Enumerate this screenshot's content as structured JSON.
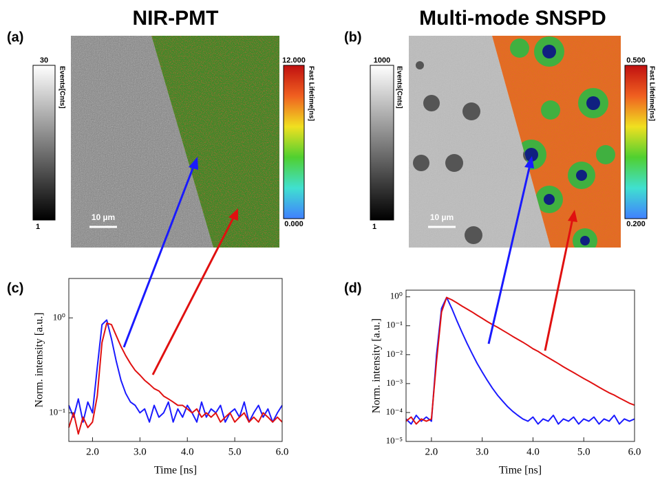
{
  "figure": {
    "panels": [
      {
        "label": "(a)",
        "title": "NIR-PMT",
        "gray_bar": {
          "top": "30",
          "bottom": "1",
          "label": "Events[Cnts]"
        },
        "color_bar": {
          "top": "12.000",
          "bottom": "0.000",
          "label": "Fast Lifetime[ns]"
        },
        "scale_bar": "10 µm"
      },
      {
        "label": "(b)",
        "title": "Multi-mode SNSPD",
        "gray_bar": {
          "top": "1000",
          "bottom": "1",
          "label": "Events[Cnts]"
        },
        "color_bar": {
          "top": "0.500",
          "bottom": "0.200",
          "label": "Fast Lifetime[ns]"
        },
        "scale_bar": "10 µm"
      }
    ]
  },
  "chart_data": [
    {
      "type": "line",
      "panel_label": "(c)",
      "x_label": "Time [ns]",
      "y_label": "Norm. intensity [a.u.]",
      "log_y": true,
      "xlim": [
        1.5,
        6.0
      ],
      "xticks": [
        {
          "value": 2,
          "label": "2.0"
        },
        {
          "value": 3,
          "label": "3.0"
        },
        {
          "value": 4,
          "label": "4.0"
        },
        {
          "value": 5,
          "label": "5.0"
        },
        {
          "value": 6,
          "label": "6.0"
        }
      ],
      "ylim": [
        0.05,
        2.6
      ],
      "yticks": [
        {
          "value": 0.1,
          "label": "10⁻¹"
        },
        {
          "value": 1,
          "label": "10⁰"
        }
      ],
      "x": [
        1.5,
        1.6,
        1.7,
        1.8,
        1.9,
        2.0,
        2.1,
        2.2,
        2.3,
        2.4,
        2.5,
        2.6,
        2.7,
        2.8,
        2.9,
        3.0,
        3.1,
        3.2,
        3.3,
        3.4,
        3.5,
        3.6,
        3.7,
        3.8,
        3.9,
        4.0,
        4.1,
        4.2,
        4.3,
        4.4,
        4.5,
        4.6,
        4.7,
        4.8,
        4.9,
        5.0,
        5.1,
        5.2,
        5.3,
        5.4,
        5.5,
        5.6,
        5.7,
        5.8,
        5.9,
        6.0
      ],
      "series": [
        {
          "color": "#1a1aff",
          "values": [
            0.12,
            0.09,
            0.14,
            0.08,
            0.13,
            0.1,
            0.3,
            0.85,
            0.95,
            0.6,
            0.35,
            0.22,
            0.16,
            0.13,
            0.12,
            0.1,
            0.11,
            0.08,
            0.12,
            0.09,
            0.1,
            0.13,
            0.08,
            0.11,
            0.09,
            0.12,
            0.1,
            0.08,
            0.13,
            0.09,
            0.11,
            0.1,
            0.12,
            0.08,
            0.1,
            0.11,
            0.09,
            0.13,
            0.08,
            0.1,
            0.12,
            0.09,
            0.11,
            0.08,
            0.1,
            0.12
          ]
        },
        {
          "color": "#e01010",
          "values": [
            0.07,
            0.1,
            0.06,
            0.09,
            0.07,
            0.08,
            0.15,
            0.55,
            0.88,
            0.85,
            0.65,
            0.5,
            0.4,
            0.33,
            0.28,
            0.25,
            0.22,
            0.2,
            0.18,
            0.17,
            0.15,
            0.14,
            0.13,
            0.12,
            0.12,
            0.11,
            0.1,
            0.11,
            0.09,
            0.1,
            0.09,
            0.1,
            0.08,
            0.09,
            0.1,
            0.08,
            0.09,
            0.1,
            0.08,
            0.09,
            0.08,
            0.1,
            0.09,
            0.08,
            0.09,
            0.08
          ]
        }
      ]
    },
    {
      "type": "line",
      "panel_label": "(d)",
      "x_label": "Time [ns]",
      "y_label": "Norm. intensity [a.u.]",
      "log_y": true,
      "xlim": [
        1.5,
        6.0
      ],
      "xticks": [
        {
          "value": 2,
          "label": "2.0"
        },
        {
          "value": 3,
          "label": "3.0"
        },
        {
          "value": 4,
          "label": "4.0"
        },
        {
          "value": 5,
          "label": "5.0"
        },
        {
          "value": 6,
          "label": "6.0"
        }
      ],
      "ylim": [
        1e-05,
        1.7
      ],
      "yticks": [
        {
          "value": 1e-05,
          "label": "10⁻⁵"
        },
        {
          "value": 0.0001,
          "label": "10⁻⁴"
        },
        {
          "value": 0.001,
          "label": "10⁻³"
        },
        {
          "value": 0.01,
          "label": "10⁻²"
        },
        {
          "value": 0.1,
          "label": "10⁻¹"
        },
        {
          "value": 1,
          "label": "10⁰"
        }
      ],
      "x": [
        1.5,
        1.6,
        1.7,
        1.8,
        1.9,
        2.0,
        2.1,
        2.2,
        2.3,
        2.4,
        2.5,
        2.6,
        2.7,
        2.8,
        2.9,
        3.0,
        3.1,
        3.2,
        3.3,
        3.4,
        3.5,
        3.6,
        3.7,
        3.8,
        3.9,
        4.0,
        4.1,
        4.2,
        4.3,
        4.4,
        4.5,
        4.6,
        4.7,
        4.8,
        4.9,
        5.0,
        5.1,
        5.2,
        5.3,
        5.4,
        5.5,
        5.6,
        5.7,
        5.8,
        5.9,
        6.0
      ],
      "series": [
        {
          "color": "#1a1aff",
          "values": [
            6e-05,
            4e-05,
            8e-05,
            5e-05,
            7e-05,
            5e-05,
            0.01,
            0.4,
            0.95,
            0.4,
            0.15,
            0.06,
            0.025,
            0.011,
            0.005,
            0.0025,
            0.0013,
            0.0007,
            0.0004,
            0.00025,
            0.00016,
            0.00011,
            8e-05,
            6e-05,
            5e-05,
            7e-05,
            4e-05,
            6e-05,
            5e-05,
            8e-05,
            4e-05,
            6e-05,
            5e-05,
            7e-05,
            4e-05,
            6e-05,
            5e-05,
            7e-05,
            4e-05,
            6e-05,
            5e-05,
            8e-05,
            4e-05,
            6e-05,
            5e-05,
            6e-05
          ]
        },
        {
          "color": "#e01010",
          "values": [
            5e-05,
            7e-05,
            4e-05,
            6e-05,
            5e-05,
            6e-05,
            0.006,
            0.3,
            0.95,
            0.79,
            0.62,
            0.48,
            0.38,
            0.3,
            0.23,
            0.18,
            0.14,
            0.11,
            0.089,
            0.07,
            0.055,
            0.043,
            0.034,
            0.027,
            0.021,
            0.016,
            0.013,
            0.01,
            0.0079,
            0.0062,
            0.0049,
            0.0038,
            0.003,
            0.0024,
            0.0019,
            0.0015,
            0.0012,
            0.00095,
            0.00075,
            0.0006,
            0.00048,
            0.0004,
            0.00032,
            0.00026,
            0.00021,
            0.00018
          ]
        }
      ]
    }
  ]
}
